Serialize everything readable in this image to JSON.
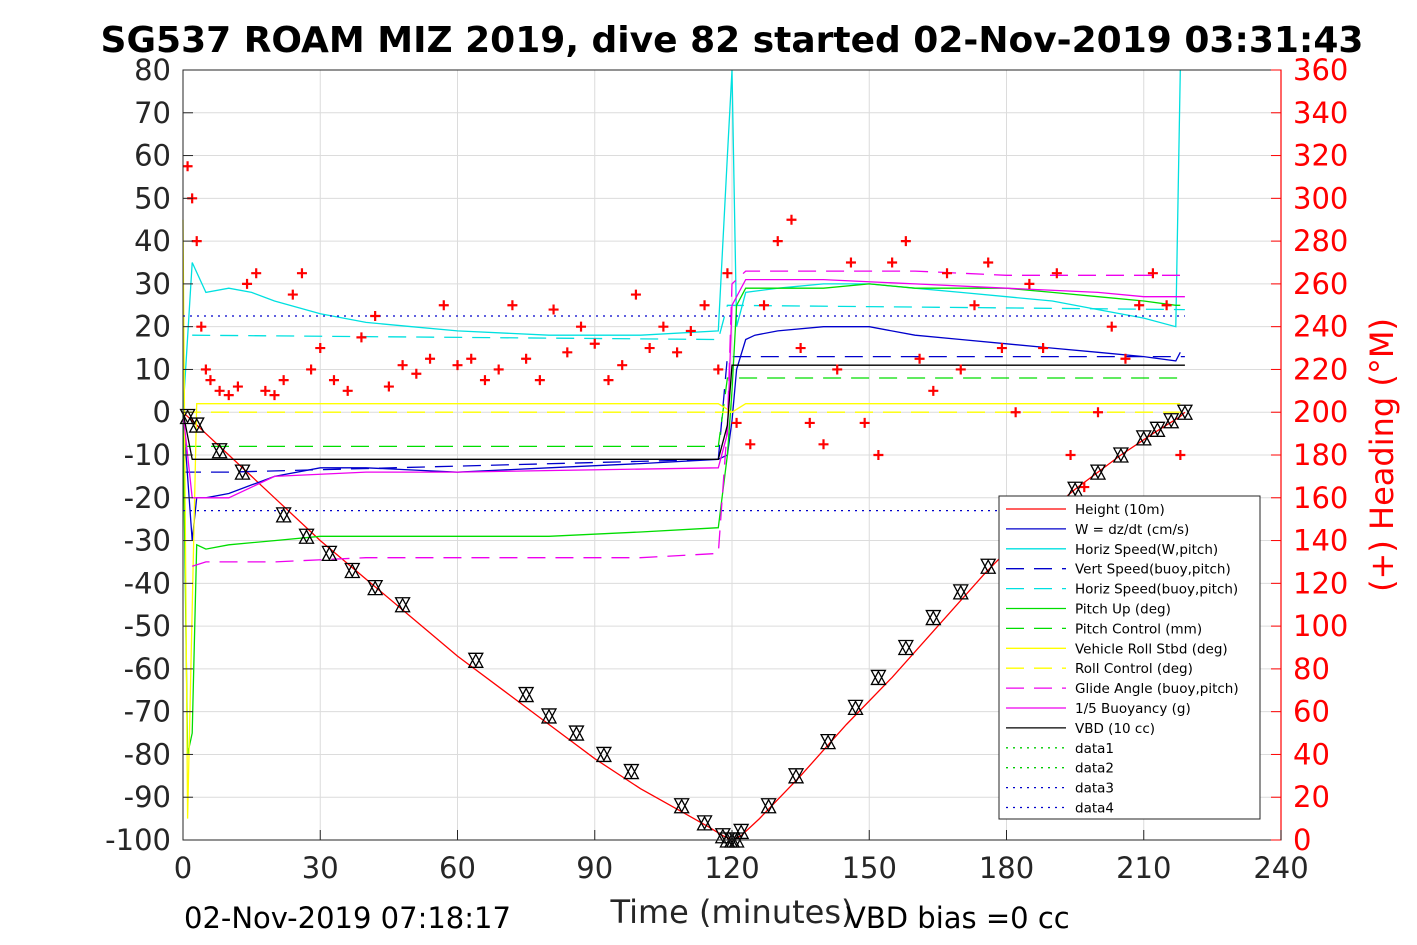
{
  "title": "SG537 ROAM MIZ 2019, dive 82 started 02-Nov-2019 03:31:43",
  "footer_left": "02-Nov-2019 07:18:17",
  "footer_right": "VBD bias =0 cc",
  "colors": {
    "red": "#ff0000",
    "blue": "#0000cc",
    "cyan": "#00e0e0",
    "green": "#00dd00",
    "yellow": "#ffff00",
    "magenta": "#ee00ee",
    "black": "#000000",
    "dotgreen": "#00cc00"
  },
  "chart_data": {
    "type": "line",
    "title": "SG537 ROAM MIZ 2019, dive 82 started 02-Nov-2019 03:31:43",
    "xlabel": "Time (minutes)",
    "ylabel": "",
    "ylabel_right": "(+) Heading (°M)",
    "xlim": [
      0,
      240
    ],
    "ylim": [
      -100,
      80
    ],
    "ylim_right": [
      0,
      360
    ],
    "x_ticks": [
      0,
      30,
      60,
      90,
      120,
      150,
      180,
      210,
      240
    ],
    "y_ticks": [
      80,
      70,
      60,
      50,
      40,
      30,
      20,
      10,
      0,
      -10,
      -20,
      -30,
      -40,
      -50,
      -60,
      -70,
      -80,
      -90,
      -100
    ],
    "y_ticks_right": [
      360,
      340,
      320,
      300,
      280,
      260,
      240,
      220,
      200,
      180,
      160,
      140,
      120,
      100,
      80,
      60,
      40,
      20,
      0
    ],
    "grid": true,
    "legend_position": "lower-right",
    "series": [
      {
        "name": "Height (10m)",
        "color": "#ff0000",
        "style": "solid",
        "x": [
          0,
          2,
          10,
          20,
          30,
          40,
          50,
          60,
          70,
          80,
          90,
          100,
          110,
          115,
          118,
          120,
          122,
          126,
          135,
          145,
          155,
          165,
          175,
          185,
          195,
          205,
          212,
          218,
          219
        ],
        "y": [
          0,
          -2,
          -10,
          -20,
          -30,
          -39,
          -48,
          -57,
          -65,
          -73,
          -81,
          -88,
          -94,
          -97,
          -99,
          -100,
          -99,
          -95,
          -85,
          -73,
          -62,
          -50,
          -38,
          -27,
          -18,
          -10,
          -5,
          -1,
          0
        ]
      },
      {
        "name": "W = dz/dt (cm/s)",
        "color": "#0000cc",
        "style": "solid",
        "x": [
          0,
          2,
          3,
          5,
          10,
          15,
          20,
          30,
          40,
          60,
          80,
          100,
          117,
          119,
          120,
          121,
          123,
          125,
          130,
          140,
          150,
          160,
          170,
          180,
          190,
          200,
          210,
          217,
          218
        ],
        "y": [
          0,
          -30,
          -20,
          -20,
          -19,
          -17,
          -15,
          -13,
          -13,
          -14,
          -13,
          -12,
          -11,
          -10,
          -2,
          10,
          17,
          18,
          19,
          20,
          20,
          18,
          17,
          16,
          15,
          14,
          13,
          12,
          14
        ]
      },
      {
        "name": "Horiz Speed(W,pitch)",
        "color": "#00e0e0",
        "style": "solid",
        "x": [
          0,
          2,
          5,
          10,
          15,
          20,
          30,
          40,
          50,
          60,
          80,
          100,
          117,
          119,
          120,
          121,
          123,
          130,
          140,
          150,
          160,
          170,
          180,
          190,
          200,
          210,
          217,
          218
        ],
        "y": [
          0,
          35,
          28,
          29,
          28,
          26,
          23,
          21,
          20,
          19,
          18,
          18,
          19,
          60,
          80,
          20,
          28,
          29,
          30,
          30,
          29,
          28,
          27,
          26,
          24,
          22,
          20,
          80
        ]
      },
      {
        "name": "Vert Speed(buoy,pitch)",
        "color": "#0000cc",
        "style": "dashed",
        "x": [
          0,
          4,
          10,
          117,
          119,
          219
        ],
        "y": [
          -14,
          -14,
          -14,
          -11,
          13,
          13
        ]
      },
      {
        "name": "Horiz Speed(buoy,pitch)",
        "color": "#00e0e0",
        "style": "dashed",
        "x": [
          2,
          117,
          119,
          219
        ],
        "y": [
          18,
          17,
          25,
          24
        ]
      },
      {
        "name": "Pitch Up (deg)",
        "color": "#00dd00",
        "style": "solid",
        "x": [
          0,
          1,
          2,
          3,
          5,
          10,
          20,
          30,
          40,
          60,
          80,
          100,
          117,
          119,
          120,
          121,
          123,
          130,
          140,
          150,
          160,
          170,
          180,
          190,
          200,
          210,
          217,
          218
        ],
        "y": [
          0,
          -80,
          -75,
          -31,
          -32,
          -31,
          -30,
          -29,
          -29,
          -29,
          -29,
          -28,
          -27,
          -10,
          5,
          25,
          29,
          29,
          29,
          30,
          29,
          29,
          29,
          28,
          27,
          26,
          25,
          25
        ]
      },
      {
        "name": "Pitch Control (mm)",
        "color": "#00dd00",
        "style": "dashed",
        "x": [
          0,
          4,
          117,
          119,
          219
        ],
        "y": [
          -8,
          -8,
          -8,
          8,
          8
        ]
      },
      {
        "name": "Vehicle Roll Stbd (deg)",
        "color": "#ffff00",
        "style": "solid",
        "x": [
          0,
          1,
          3,
          10,
          20,
          40,
          60,
          80,
          100,
          117,
          120,
          123,
          130,
          150,
          170,
          190,
          210,
          218
        ],
        "y": [
          45,
          -95,
          2,
          2,
          2,
          2,
          2,
          2,
          2,
          2,
          0,
          2,
          2,
          2,
          2,
          2,
          2,
          2
        ]
      },
      {
        "name": "Roll Control (deg)",
        "color": "#ffff00",
        "style": "dashed",
        "x": [
          0,
          219
        ],
        "y": [
          0,
          0
        ]
      },
      {
        "name": "Glide Angle (buoy,pitch)",
        "color": "#ee00ee",
        "style": "dashed",
        "x": [
          2,
          5,
          20,
          40,
          60,
          80,
          100,
          117,
          119,
          120,
          123,
          140,
          160,
          180,
          200,
          219
        ],
        "y": [
          -36,
          -35,
          -35,
          -34,
          -34,
          -34,
          -34,
          -33,
          -3,
          30,
          33,
          33,
          33,
          32,
          32,
          32
        ]
      },
      {
        "name": "1/5 Buoyancy (g)",
        "color": "#ee00ee",
        "style": "solid",
        "x": [
          0,
          2,
          4,
          10,
          20,
          40,
          60,
          117,
          119,
          120,
          123,
          140,
          160,
          180,
          200,
          210,
          219
        ],
        "y": [
          0,
          -20,
          -20,
          -20,
          -15,
          -14,
          -14,
          -13,
          -5,
          25,
          31,
          31,
          30,
          29,
          28,
          27,
          27
        ]
      },
      {
        "name": "VBD (10 cc)",
        "color": "#000000",
        "style": "solid",
        "x": [
          0,
          2,
          4,
          117,
          119,
          120,
          219
        ],
        "y": [
          0,
          -11,
          -11,
          -11,
          -3,
          11,
          11
        ]
      },
      {
        "name": "data1",
        "color": "#00cc00",
        "style": "dotted",
        "x": [],
        "y": []
      },
      {
        "name": "data2",
        "color": "#00cc00",
        "style": "dotted",
        "x": [],
        "y": []
      },
      {
        "name": "data3",
        "color": "#0000cc",
        "style": "dotted",
        "x": [
          0,
          219
        ],
        "y": [
          22.5,
          22.5
        ]
      },
      {
        "name": "data4",
        "color": "#0000cc",
        "style": "dotted",
        "x": [
          0,
          219
        ],
        "y": [
          -23,
          -23
        ]
      }
    ],
    "heading": {
      "name": "Heading (deg M)",
      "axis": "right",
      "color": "#ff0000",
      "marker": "+",
      "x": [
        1,
        2,
        3,
        4,
        5,
        6,
        8,
        10,
        12,
        14,
        16,
        18,
        20,
        22,
        24,
        26,
        28,
        30,
        33,
        36,
        39,
        42,
        45,
        48,
        51,
        54,
        57,
        60,
        63,
        66,
        69,
        72,
        75,
        78,
        81,
        84,
        87,
        90,
        93,
        96,
        99,
        102,
        105,
        108,
        111,
        114,
        117,
        119,
        121,
        124,
        127,
        130,
        133,
        135,
        137,
        140,
        143,
        146,
        149,
        152,
        155,
        158,
        161,
        164,
        167,
        170,
        173,
        176,
        179,
        182,
        185,
        188,
        191,
        194,
        197,
        200,
        203,
        206,
        209,
        212,
        215,
        218
      ],
      "y": [
        315,
        300,
        280,
        240,
        220,
        215,
        210,
        208,
        212,
        260,
        265,
        210,
        208,
        215,
        255,
        265,
        220,
        230,
        215,
        210,
        235,
        245,
        212,
        222,
        218,
        225,
        250,
        222,
        225,
        215,
        220,
        250,
        225,
        215,
        248,
        228,
        240,
        232,
        215,
        222,
        255,
        230,
        240,
        228,
        238,
        250,
        220,
        265,
        195,
        185,
        250,
        280,
        290,
        230,
        195,
        185,
        220,
        270,
        195,
        180,
        270,
        280,
        225,
        210,
        265,
        220,
        250,
        270,
        230,
        200,
        260,
        230,
        265,
        180,
        165,
        200,
        240,
        225,
        250,
        265,
        250,
        180
      ]
    },
    "markers": {
      "name": "depth markers",
      "color": "#000000",
      "x": [
        1,
        3,
        8,
        13,
        22,
        27,
        32,
        37,
        42,
        48,
        64,
        75,
        80,
        86,
        92,
        98,
        109,
        114,
        118,
        119,
        120,
        121,
        122,
        128,
        134,
        141,
        147,
        152,
        158,
        164,
        170,
        176,
        195,
        200,
        205,
        210,
        213,
        216,
        219
      ],
      "y": [
        -1,
        -3,
        -9,
        -14,
        -24,
        -29,
        -33,
        -37,
        -41,
        -45,
        -58,
        -66,
        -71,
        -75,
        -80,
        -84,
        -92,
        -96,
        -99,
        -100,
        -100,
        -100,
        -98,
        -92,
        -85,
        -77,
        -69,
        -62,
        -55,
        -48,
        -42,
        -36,
        -18,
        -14,
        -10,
        -6,
        -4,
        -2,
        0
      ]
    }
  }
}
